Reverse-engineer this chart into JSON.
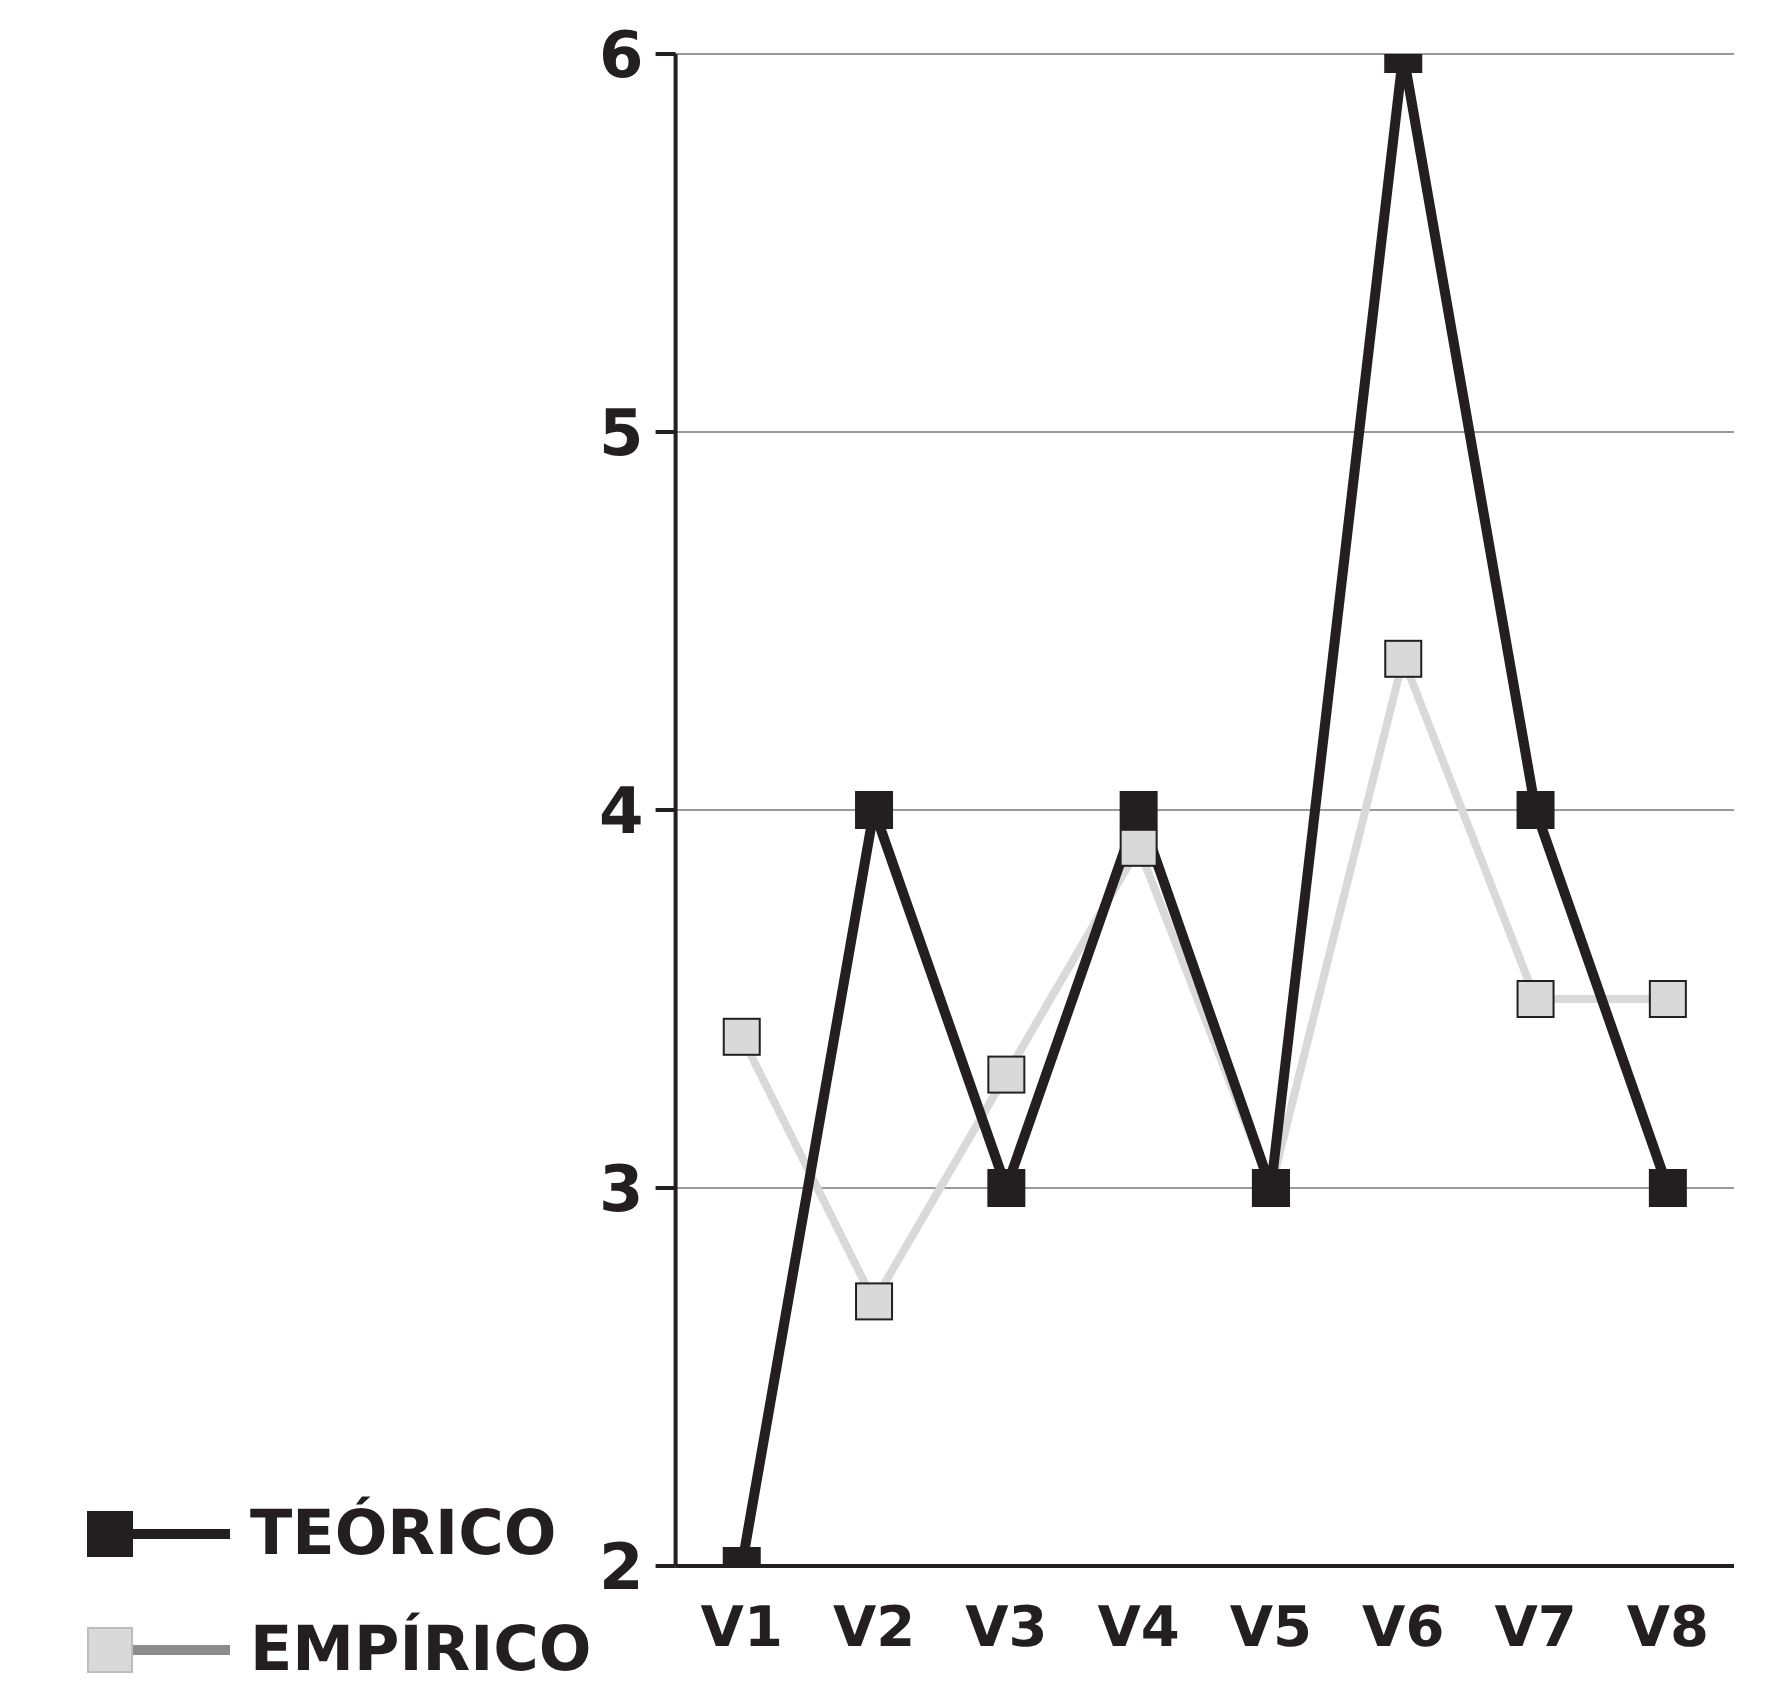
{
  "chart_data": {
    "type": "line",
    "categories": [
      "V1",
      "V2",
      "V3",
      "V4",
      "V5",
      "V6",
      "V7",
      "V8"
    ],
    "series": [
      {
        "name": "TEÓRICO",
        "color": "#231f20",
        "values": [
          2,
          4,
          3,
          4,
          3,
          6,
          4,
          3
        ]
      },
      {
        "name": "EMPÍRICO",
        "color": "#d9d9d9",
        "values": [
          3.4,
          2.7,
          3.3,
          3.9,
          3.0,
          4.4,
          3.5,
          3.5
        ]
      }
    ],
    "ylim": [
      2,
      6
    ],
    "yticks": [
      2,
      3,
      4,
      5,
      6
    ],
    "grid": "y",
    "legend": "bottom left",
    "marker": "square",
    "line_style": "solid"
  }
}
